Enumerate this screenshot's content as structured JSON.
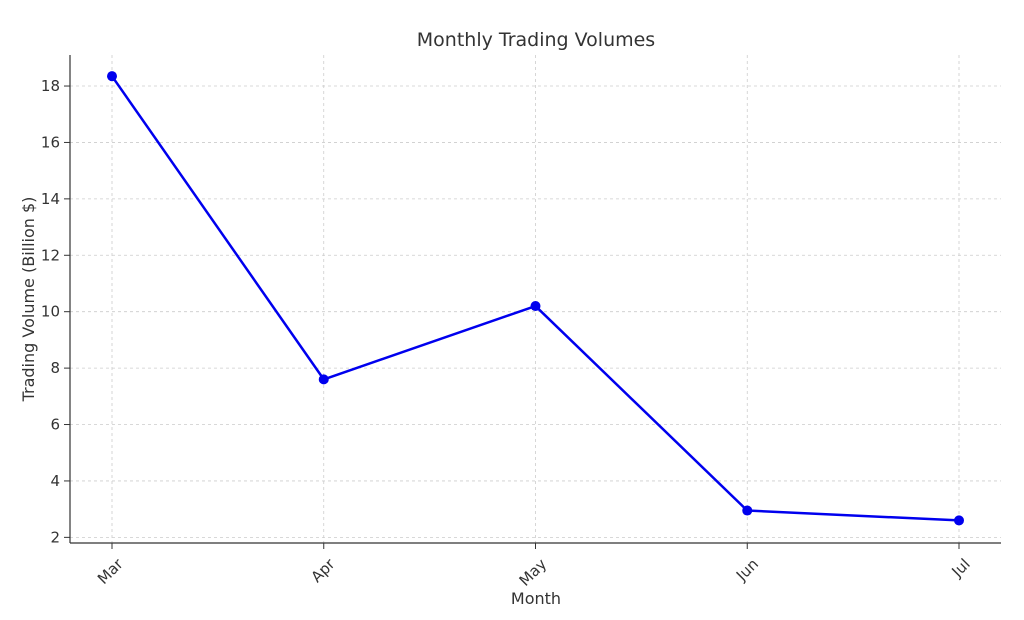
{
  "chart_data": {
    "type": "line",
    "title": "Monthly Trading Volumes",
    "xlabel": "Month",
    "ylabel": "Trading Volume (Billion $)",
    "categories": [
      "Mar",
      "Apr",
      "May",
      "Jun",
      "Jul"
    ],
    "series": [
      {
        "values": [
          18.35,
          7.6,
          10.2,
          2.95,
          2.6
        ],
        "color": "#0000ee"
      }
    ],
    "ylim": [
      1.8,
      19.1
    ],
    "yticks": [
      "2",
      "4",
      "6",
      "8",
      "10",
      "12",
      "14",
      "16",
      "18"
    ],
    "grid": true,
    "grid_color": "#cccccc",
    "axis_color": "#333333"
  }
}
